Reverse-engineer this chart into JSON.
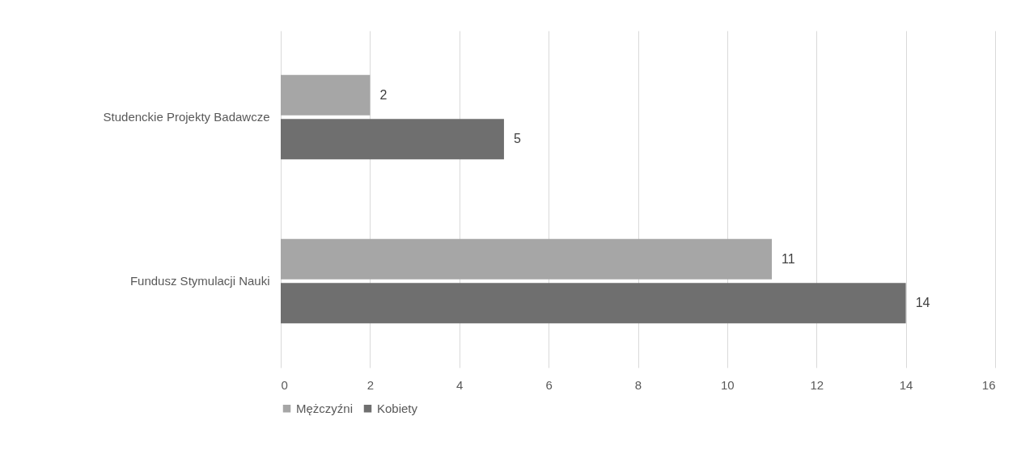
{
  "chart_data": {
    "type": "bar",
    "orientation": "horizontal",
    "categories": [
      "Studenckie Projekty Badawcze",
      "Fundusz Stymulacji Nauki"
    ],
    "series": [
      {
        "name": "Mężczyźni",
        "color": "#a6a6a6",
        "values": [
          2,
          11
        ]
      },
      {
        "name": "Kobiety",
        "color": "#6f6f6f",
        "values": [
          5,
          14
        ]
      }
    ],
    "xlim": [
      0,
      16
    ],
    "xticks": [
      0,
      2,
      4,
      6,
      8,
      10,
      12,
      14,
      16
    ],
    "grid": "x",
    "legend": "bottom",
    "data_labels": true
  }
}
